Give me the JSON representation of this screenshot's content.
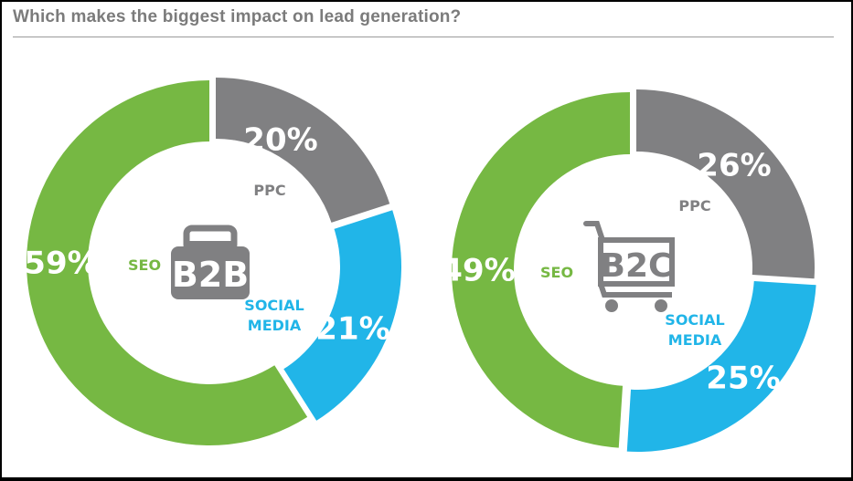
{
  "title": "Which makes the biggest impact on lead generation?",
  "colors": {
    "seo": "#76b843",
    "ppc": "#808082",
    "social": "#21b5e8",
    "text_gray": "#7b7b7b"
  },
  "chart_data": [
    {
      "type": "pie",
      "donut": true,
      "name": "B2B",
      "icon": "briefcase-icon",
      "slices": [
        {
          "label": "PPC",
          "value": 20,
          "display": "20%"
        },
        {
          "label": "SOCIAL MEDIA",
          "label_lines": [
            "SOCIAL",
            "MEDIA"
          ],
          "value": 21,
          "display": "21%"
        },
        {
          "label": "SEO",
          "value": 59,
          "display": "59%"
        }
      ]
    },
    {
      "type": "pie",
      "donut": true,
      "name": "B2C",
      "icon": "shopping-cart-icon",
      "slices": [
        {
          "label": "PPC",
          "value": 26,
          "display": "26%"
        },
        {
          "label": "SOCIAL MEDIA",
          "label_lines": [
            "SOCIAL",
            "MEDIA"
          ],
          "value": 25,
          "display": "25%"
        },
        {
          "label": "SEO",
          "value": 49,
          "display": "49%"
        }
      ]
    }
  ]
}
